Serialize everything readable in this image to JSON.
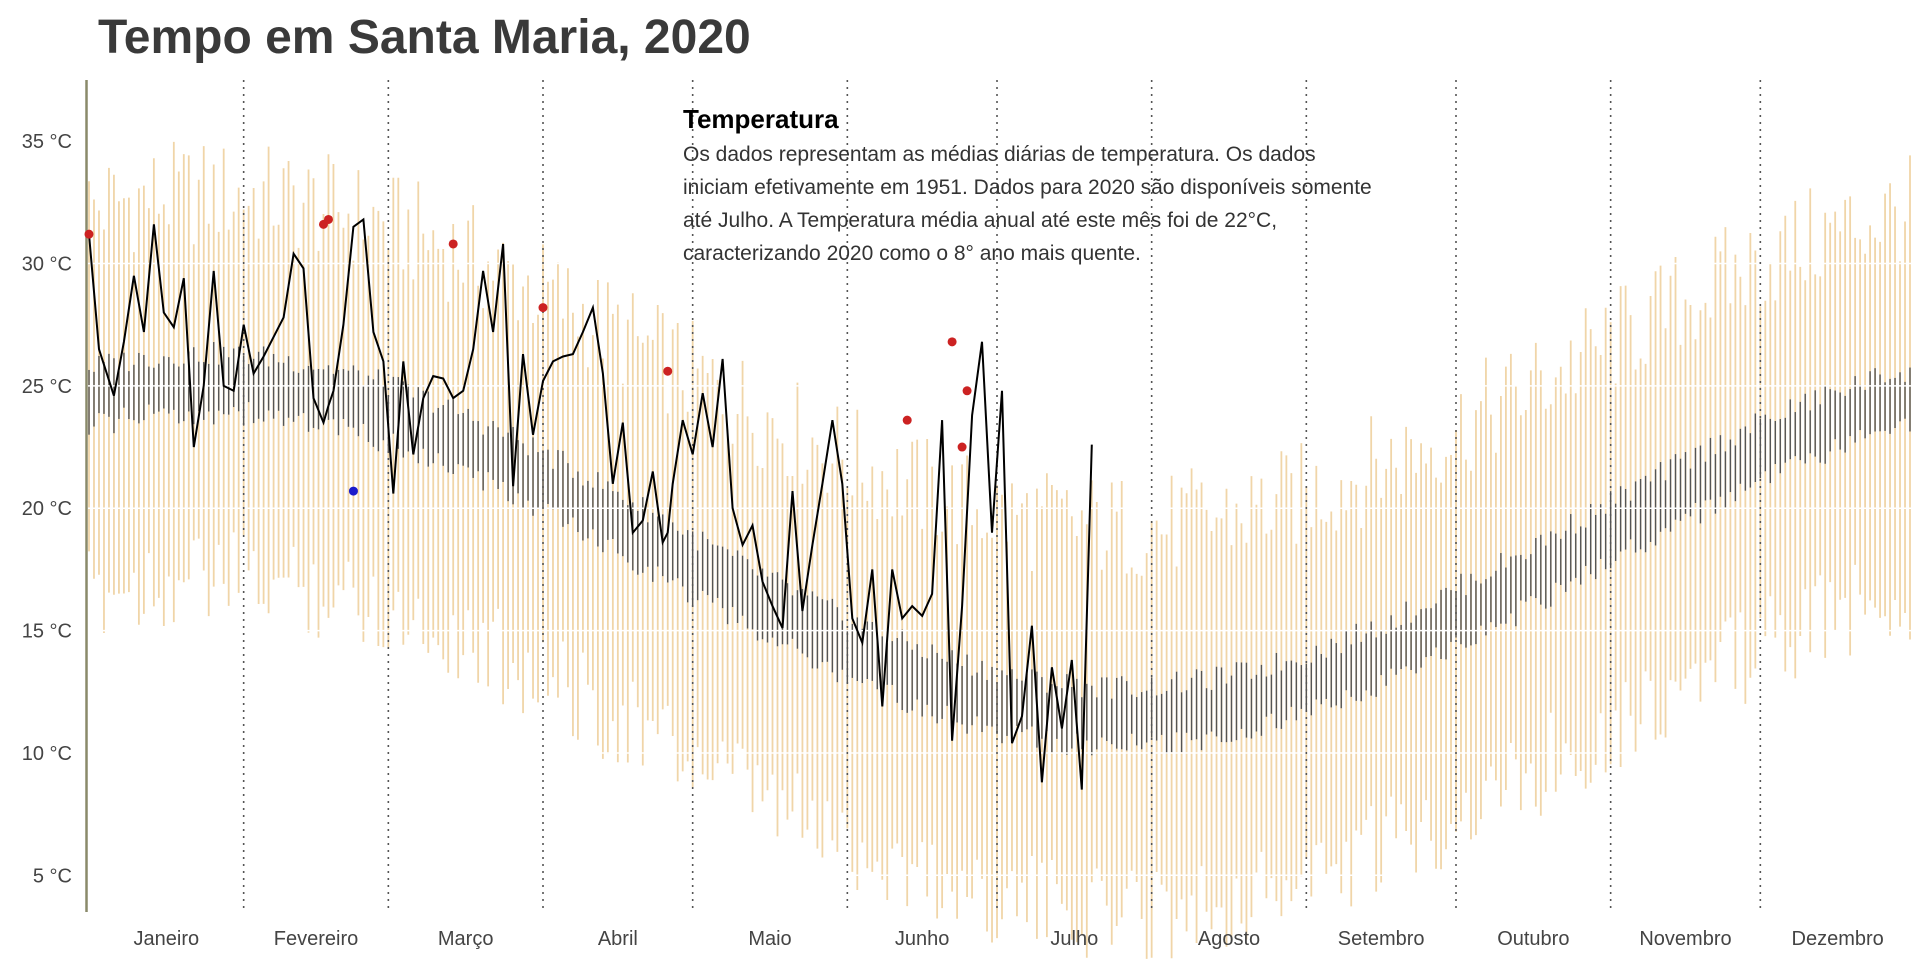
{
  "chart_data": {
    "type": "line",
    "title": "Tempo em Santa Maria, 2020",
    "ylim": [
      3.5,
      37.5
    ],
    "y_ticks": [
      5,
      10,
      15,
      20,
      25,
      30,
      35
    ],
    "y_tick_labels": [
      "5 °C",
      "10 °C",
      "15 °C",
      "20 °C",
      "25 °C",
      "30 °C",
      "35 °C"
    ],
    "months": [
      "Janeiro",
      "Fevereiro",
      "Março",
      "Abril",
      "Maio",
      "Junho",
      "Julho",
      "Agosto",
      "Setembro",
      "Outubro",
      "Novembro",
      "Dezembro"
    ],
    "annotation": {
      "title": "Temperatura",
      "lines": [
        "Os dados representam as médias diárias de temperatura. Os dados",
        "iniciam efetivamente em 1951. Dados para 2020 são disponíveis somente",
        "até Julho. A Temperatura média anual até este mês foi de 22°C,",
        "caracterizando 2020 como o 8° ano mais quente."
      ]
    },
    "grid": true,
    "colors": {
      "record_range": "#f0d5a8",
      "normal_range": "#555555",
      "line_2020": "#000000",
      "record_high": "#cc2222",
      "record_low": "#1a1acc",
      "month_divider": "#555555",
      "gridline": "#ffffff",
      "axis": "#8a8a6a"
    },
    "series_2020": {
      "day": [
        1,
        3,
        6,
        8,
        10,
        12,
        14,
        16,
        18,
        20,
        22,
        24,
        26,
        28,
        30,
        32,
        34,
        36,
        38,
        40,
        42,
        44,
        46,
        48,
        49,
        50,
        52,
        54,
        56,
        58,
        60,
        62,
        64,
        66,
        68,
        70,
        72,
        74,
        76,
        78,
        80,
        82,
        84,
        86,
        88,
        90,
        92,
        94,
        96,
        98,
        100,
        102,
        104,
        106,
        108,
        110,
        112,
        114,
        116,
        117,
        118,
        120,
        122,
        124,
        126,
        128,
        130,
        132,
        134,
        136,
        138,
        140,
        142,
        144,
        146,
        148,
        150,
        152,
        154,
        156,
        158,
        160,
        162,
        164,
        166,
        168,
        170,
        172,
        174,
        176,
        178,
        180,
        182,
        184,
        186,
        188,
        190,
        192,
        194,
        196,
        198,
        200,
        202
      ],
      "temp": [
        31.2,
        26.5,
        24.6,
        26.8,
        29.5,
        27.2,
        31.6,
        28.0,
        27.4,
        29.4,
        22.5,
        25.0,
        29.7,
        25.0,
        24.8,
        27.5,
        25.5,
        26.2,
        27.0,
        27.8,
        30.4,
        29.8,
        24.5,
        23.5,
        24.2,
        24.8,
        27.5,
        31.5,
        31.8,
        27.2,
        26.0,
        20.6,
        26.0,
        22.2,
        24.5,
        25.4,
        25.3,
        24.5,
        24.8,
        26.5,
        29.7,
        27.2,
        30.8,
        20.9,
        26.3,
        23.0,
        25.2,
        26.0,
        26.2,
        26.3,
        27.2,
        28.2,
        25.5,
        21.0,
        23.5,
        19.0,
        19.5,
        21.5,
        18.6,
        19.0,
        21.0,
        23.6,
        22.2,
        24.7,
        22.5,
        26.1,
        20.0,
        18.5,
        19.3,
        17.0,
        16.0,
        15.1,
        20.7,
        15.8,
        18.5,
        21.0,
        23.6,
        21.0,
        15.5,
        14.5,
        17.5,
        11.9,
        17.5,
        15.5,
        16.0,
        15.6,
        16.5,
        23.6,
        10.5,
        16.0,
        23.8,
        26.8,
        19.0,
        24.8,
        10.4,
        11.5,
        15.2,
        8.8,
        13.5,
        11.0,
        13.8,
        8.5,
        22.6
      ],
      "record_highs": [
        [
          1,
          31.2
        ],
        [
          48,
          31.6
        ],
        [
          49,
          31.8
        ],
        [
          74,
          30.8
        ],
        [
          92,
          28.2
        ],
        [
          117,
          25.6
        ],
        [
          165,
          23.6
        ],
        [
          174,
          26.8
        ],
        [
          176,
          22.5
        ],
        [
          177,
          24.8
        ]
      ],
      "record_lows": [
        [
          54,
          20.7
        ]
      ]
    }
  }
}
